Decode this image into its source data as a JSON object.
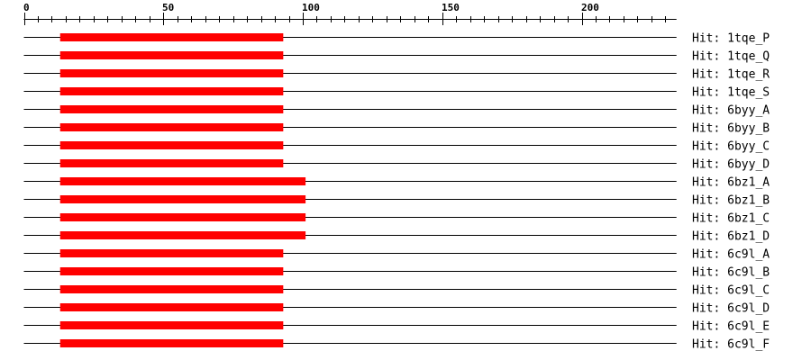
{
  "axis": {
    "min": 0,
    "max": 234,
    "major_step": 50,
    "minor_step": 5,
    "major_labels": [
      "0",
      "50",
      "100",
      "150",
      "200"
    ]
  },
  "colors": {
    "hit_bar": "#ff0000",
    "line": "#000000"
  },
  "label_prefix": "Hit: ",
  "hits": [
    {
      "name": "1tqe_P",
      "start": 13,
      "end": 93
    },
    {
      "name": "1tqe_Q",
      "start": 13,
      "end": 93
    },
    {
      "name": "1tqe_R",
      "start": 13,
      "end": 93
    },
    {
      "name": "1tqe_S",
      "start": 13,
      "end": 93
    },
    {
      "name": "6byy_A",
      "start": 13,
      "end": 93
    },
    {
      "name": "6byy_B",
      "start": 13,
      "end": 93
    },
    {
      "name": "6byy_C",
      "start": 13,
      "end": 93
    },
    {
      "name": "6byy_D",
      "start": 13,
      "end": 93
    },
    {
      "name": "6bz1_A",
      "start": 13,
      "end": 101
    },
    {
      "name": "6bz1_B",
      "start": 13,
      "end": 101
    },
    {
      "name": "6bz1_C",
      "start": 13,
      "end": 101
    },
    {
      "name": "6bz1_D",
      "start": 13,
      "end": 101
    },
    {
      "name": "6c9l_A",
      "start": 13,
      "end": 93
    },
    {
      "name": "6c9l_B",
      "start": 13,
      "end": 93
    },
    {
      "name": "6c9l_C",
      "start": 13,
      "end": 93
    },
    {
      "name": "6c9l_D",
      "start": 13,
      "end": 93
    },
    {
      "name": "6c9l_E",
      "start": 13,
      "end": 93
    },
    {
      "name": "6c9l_F",
      "start": 13,
      "end": 93
    }
  ]
}
